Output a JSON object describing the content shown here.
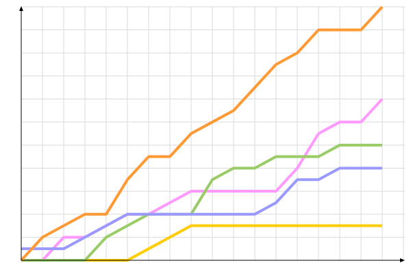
{
  "chart_data": {
    "type": "line",
    "title": "",
    "xlabel": "",
    "ylabel": "",
    "x": [
      0,
      1,
      2,
      3,
      4,
      5,
      6,
      7,
      8,
      9,
      10,
      11,
      12,
      13,
      14,
      15,
      16,
      17
    ],
    "xlim": [
      0,
      18
    ],
    "ylim": [
      0,
      11
    ],
    "grid": true,
    "legend": "none",
    "series": [
      {
        "color": "#ffcc00",
        "values": [
          0,
          0,
          0,
          0,
          0,
          0,
          0.5,
          1,
          1.5,
          1.5,
          1.5,
          1.5,
          1.5,
          1.5,
          1.5,
          1.5,
          1.5,
          1.5
        ]
      },
      {
        "color": "#ff99ff",
        "values": [
          0,
          0,
          1,
          1,
          1.5,
          2,
          2,
          2.5,
          3,
          3,
          3,
          3,
          3,
          4,
          5.5,
          6,
          6,
          7
        ]
      },
      {
        "color": "#99cc66",
        "values": [
          0,
          0,
          0,
          0,
          1,
          1.5,
          2,
          2,
          2,
          3.5,
          4,
          4,
          4.5,
          4.5,
          4.5,
          5,
          5,
          5
        ]
      },
      {
        "color": "#9999ff",
        "values": [
          0.5,
          0.5,
          0.5,
          1,
          1.5,
          2,
          2,
          2,
          2,
          2,
          2,
          2,
          2.5,
          3.5,
          3.5,
          4,
          4,
          4
        ]
      },
      {
        "color": "#ff9933",
        "values": [
          0,
          1,
          1.5,
          2,
          2,
          3.5,
          4.5,
          4.5,
          5.5,
          6,
          6.5,
          7.5,
          8.5,
          9,
          10,
          10,
          10,
          11
        ]
      }
    ]
  }
}
